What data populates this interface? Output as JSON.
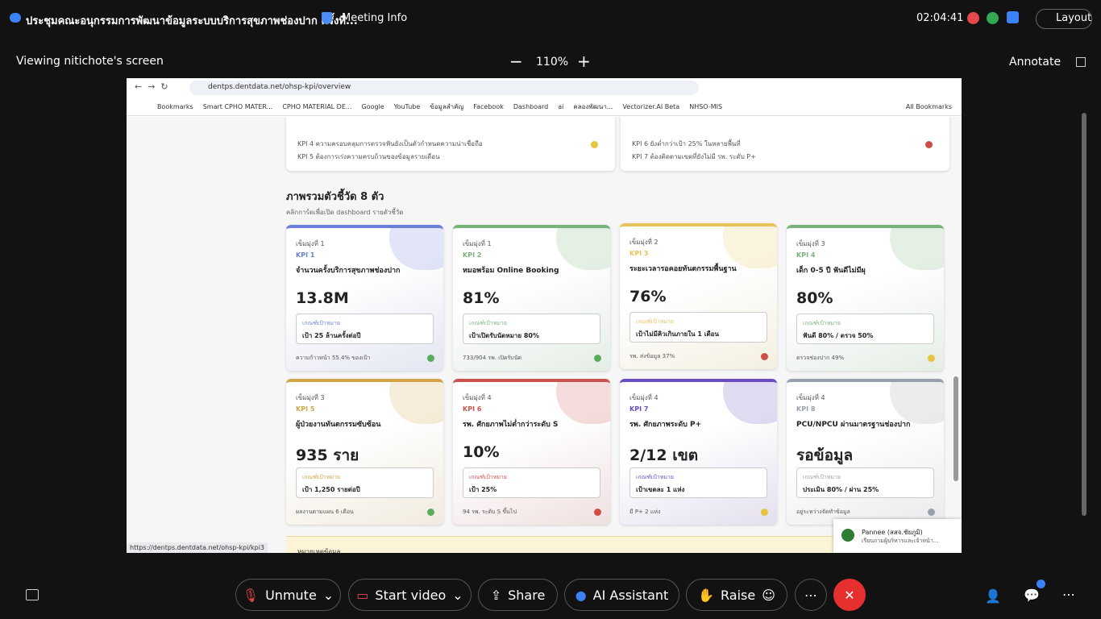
{
  "meeting": {
    "title": "ประชุมคณะอนุกรรมการพัฒนาข้อมูลระบบบริการสุขภาพช่องปาก ครั้งที่...",
    "info": "Meeting Info",
    "time": "02:04:41",
    "layout": "Layout"
  },
  "view": {
    "label": "Viewing nitichote's screen",
    "zoom": "110%",
    "annotate": "Annotate"
  },
  "browser": {
    "url": "dentps.dentdata.net/ohsp-kpi/overview",
    "status_url": "https://dentps.dentdata.net/ohsp-kpi/kpi3",
    "bookmarks": [
      "Bookmarks",
      "Smart CPHO MATER...",
      "CPHO MATERIAL DE...",
      "Google",
      "YouTube",
      "ข้อมูลสำคัญ",
      "Facebook",
      "Dashboard",
      "ai",
      "คลองพัฒนา...",
      "Vectorizer.AI Beta",
      "NHSO-MIS",
      "All Bookmarks"
    ]
  },
  "page": {
    "notes": [
      {
        "lines": [
          "KPI 4 ความครอบคลุมการตรวจฟันยังเป็นตัวกำหนดความน่าเชื่อถือ",
          "KPI 5 ต้องการเร่งความครบถ้วนของข้อมูลรายเดือน"
        ],
        "status": "#e6c53e"
      },
      {
        "lines": [
          "KPI 6 ยังต่ำกว่าเป้า 25% ในหลายพื้นที่",
          "KPI 7 ต้องติดตามเขตที่ยังไม่มี รพ. ระดับ P+"
        ],
        "status": "#cf4d47"
      }
    ],
    "section_title": "ภาพรวมตัวชี้วัด 8 ตัว",
    "section_subtitle": "คลิกการ์ดเพื่อเปิด dashboard รายตัวชี้วัด",
    "cards": [
      {
        "goal": "เข็มมุ่งที่ 1",
        "kpi": "KPI 1",
        "name": "จำนวนครั้งบริการสุขภาพช่องปาก",
        "value": "13.8M",
        "target_label": "เกณฑ์เป้าหมาย",
        "target": "เป้า 25 ล้านครั้งต่อปี",
        "footer": "ความก้าวหน้า 55.4% ของเป้า",
        "accent": "#6a7fd8",
        "status": "#5aab5e"
      },
      {
        "goal": "เข็มมุ่งที่ 1",
        "kpi": "KPI 2",
        "name": "หมอพร้อม Online Booking",
        "value": "81%",
        "target_label": "เกณฑ์เป้าหมาย",
        "target": "เป้าเปิดรับนัดหมาย 80%",
        "footer": "733/904 รพ. เปิดรับนัด",
        "accent": "#78b47a",
        "status": "#5aab5e"
      },
      {
        "goal": "เข็มมุ่งที่ 2",
        "kpi": "KPI 3",
        "name": "ระยะเวลารอคอยทันตกรรมพื้นฐาน",
        "value": "76%",
        "target_label": "เกณฑ์เป้าหมาย",
        "target": "เป้าไม่มีคิวเกินภายใน 1 เดือน",
        "footer": "รพ. ส่งข้อมูล 37%",
        "accent": "#e7c45a",
        "status": "#cf4d47"
      },
      {
        "goal": "เข็มมุ่งที่ 3",
        "kpi": "KPI 4",
        "name": "เด็ก 0-5 ปี ฟันดีไม่มีผุ",
        "value": "80%",
        "target_label": "เกณฑ์เป้าหมาย",
        "target": "ฟันดี 80% / ตรวจ 50%",
        "footer": "ตรวจช่องปาก 49%",
        "accent": "#78b47a",
        "status": "#e6c53e"
      },
      {
        "goal": "เข็มมุ่งที่ 3",
        "kpi": "KPI 5",
        "name": "ผู้ป่วยงานทันตกรรมซับซ้อน",
        "value": "935 ราย",
        "target_label": "เกณฑ์เป้าหมาย",
        "target": "เป้า 1,250 รายต่อปี",
        "footer": "ผลงานตามแผน 6 เดือน",
        "accent": "#d3a446",
        "status": "#5aab5e"
      },
      {
        "goal": "เข็มมุ่งที่ 4",
        "kpi": "KPI 6",
        "name": "รพ. ศักยภาพไม่ต่ำกว่าระดับ S",
        "value": "10%",
        "target_label": "เกณฑ์เป้าหมาย",
        "target": "เป้า 25%",
        "footer": "94 รพ. ระดับ S ขึ้นไป",
        "accent": "#c9534f",
        "status": "#cf4d47"
      },
      {
        "goal": "เข็มมุ่งที่ 4",
        "kpi": "KPI 7",
        "name": "รพ. ศักยภาพระดับ P+",
        "value": "2/12 เขต",
        "target_label": "เกณฑ์เป้าหมาย",
        "target": "เป้าเขตละ 1 แห่ง",
        "footer": "มี P+ 2 แห่ง",
        "accent": "#6a4fc0",
        "status": "#e6c53e"
      },
      {
        "goal": "เข็มมุ่งที่ 4",
        "kpi": "KPI 8",
        "name": "PCU/NPCU ผ่านมาตรฐานช่องปาก",
        "value": "รอข้อมูล",
        "target_label": "เกณฑ์เป้าหมาย",
        "target": "ประเมิน 80% / ผ่าน 25%",
        "footer": "อยู่ระหว่างจัดทำข้อมูล",
        "accent": "#9aa0ab",
        "status": "#9aa0ab"
      }
    ],
    "banner": "หมายเหตุข้อมูล"
  },
  "toolbar": {
    "unmute": "Unmute",
    "video": "Start video",
    "share": "Share",
    "ai": "AI Assistant",
    "raise": "Raise"
  },
  "notification": {
    "name": "Pannee (สสจ.ชัยภูมิ)",
    "message": "เรียนถามผู้บริหารและเจ้าหน้า..."
  }
}
